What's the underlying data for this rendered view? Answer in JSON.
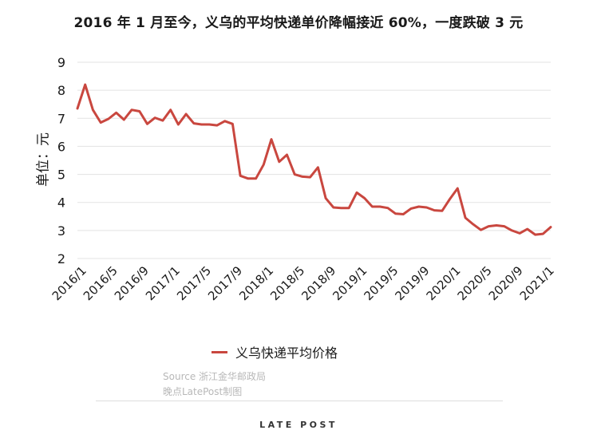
{
  "colors": {
    "series": "#c9473f",
    "grid": "#e3e3e3",
    "text": "#1a1a1a",
    "source": "#b8b8b8"
  },
  "chart_data": {
    "type": "line",
    "title": "2016 年 1 月至今，义乌的平均快递单价降幅接近 60%，一度跌破 3 元",
    "ylabel": "单位：元",
    "ylim": [
      2,
      9
    ],
    "yticks": [
      2,
      3,
      4,
      5,
      6,
      7,
      8,
      9
    ],
    "x_tick_labels": [
      "2016/1",
      "2016/5",
      "2016/9",
      "2017/1",
      "2017/5",
      "2017/9",
      "2018/1",
      "2018/5",
      "2018/9",
      "2019/1",
      "2019/5",
      "2019/9",
      "2020/1",
      "2020/5",
      "2020/9",
      "2021/1"
    ],
    "grid": "horizontal",
    "legend": "bottom",
    "series": [
      {
        "name": "义乌快递平均价格",
        "values": [
          7.35,
          8.2,
          7.3,
          6.85,
          6.98,
          7.2,
          6.95,
          7.3,
          7.25,
          6.8,
          7.02,
          6.92,
          7.3,
          6.78,
          7.15,
          6.82,
          6.78,
          6.78,
          6.75,
          6.9,
          6.8,
          4.95,
          4.85,
          4.85,
          5.35,
          6.25,
          5.45,
          5.7,
          5.0,
          4.92,
          4.9,
          5.25,
          4.15,
          3.82,
          3.8,
          3.8,
          4.35,
          4.15,
          3.85,
          3.85,
          3.8,
          3.6,
          3.58,
          3.78,
          3.85,
          3.82,
          3.72,
          3.7,
          4.12,
          4.5,
          3.45,
          3.22,
          3.02,
          3.15,
          3.18,
          3.15,
          3.0,
          2.9,
          3.05,
          2.85,
          2.88,
          3.12
        ]
      }
    ]
  },
  "source": {
    "line1": "Source   浙江金华邮政局",
    "line2": "晚点LatePost制图"
  },
  "brand": "LATE POST"
}
